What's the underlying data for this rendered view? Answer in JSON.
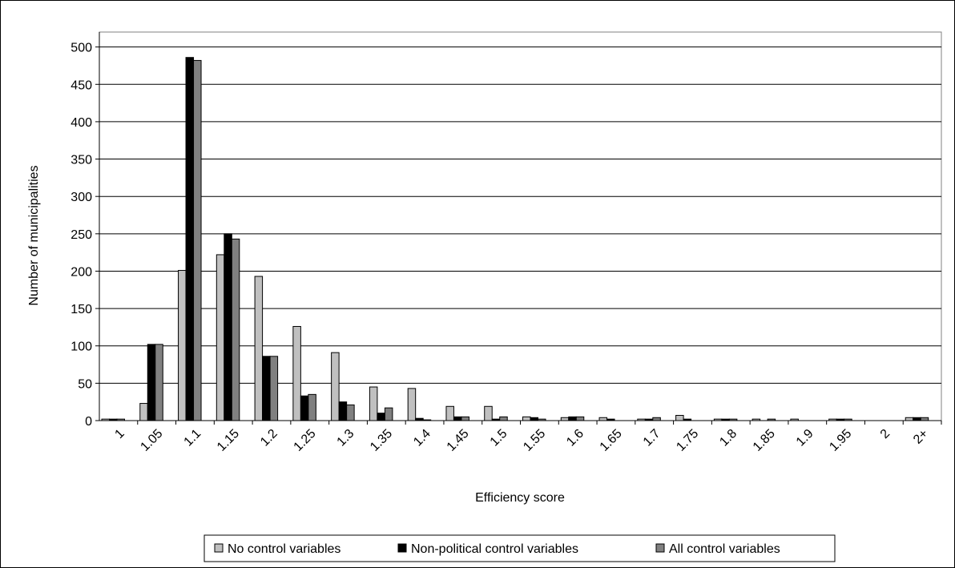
{
  "chart_data": {
    "type": "bar",
    "title": "",
    "xlabel": "Efficiency score",
    "ylabel": "Number of municipalities",
    "ylim": [
      0,
      520
    ],
    "yticks": [
      0,
      50,
      100,
      150,
      200,
      250,
      300,
      350,
      400,
      450,
      500
    ],
    "grid": "horizontal",
    "legend_position": "bottom",
    "categories": [
      "1",
      "1.05",
      "1.1",
      "1.15",
      "1.2",
      "1.25",
      "1.3",
      "1.35",
      "1.4",
      "1.45",
      "1.5",
      "1.55",
      "1.6",
      "1.65",
      "1.7",
      "1.75",
      "1.8",
      "1.85",
      "1.9",
      "1.95",
      "2",
      "2+"
    ],
    "series": [
      {
        "name": "No control variables",
        "color": "#c0c0c0",
        "values": [
          2,
          23,
          201,
          222,
          193,
          126,
          91,
          45,
          43,
          19,
          19,
          5,
          4,
          4,
          2,
          7,
          2,
          2,
          2,
          2,
          0,
          4
        ]
      },
      {
        "name": "Non-political control variables",
        "color": "#000000",
        "values": [
          2,
          102,
          486,
          250,
          86,
          33,
          25,
          10,
          3,
          5,
          2,
          4,
          5,
          2,
          2,
          2,
          2,
          0,
          0,
          2,
          0,
          4
        ]
      },
      {
        "name": "All control variables",
        "color": "#808080",
        "values": [
          2,
          102,
          482,
          243,
          86,
          35,
          21,
          17,
          1,
          5,
          5,
          2,
          5,
          0,
          4,
          0,
          2,
          2,
          0,
          2,
          0,
          4
        ]
      }
    ]
  }
}
